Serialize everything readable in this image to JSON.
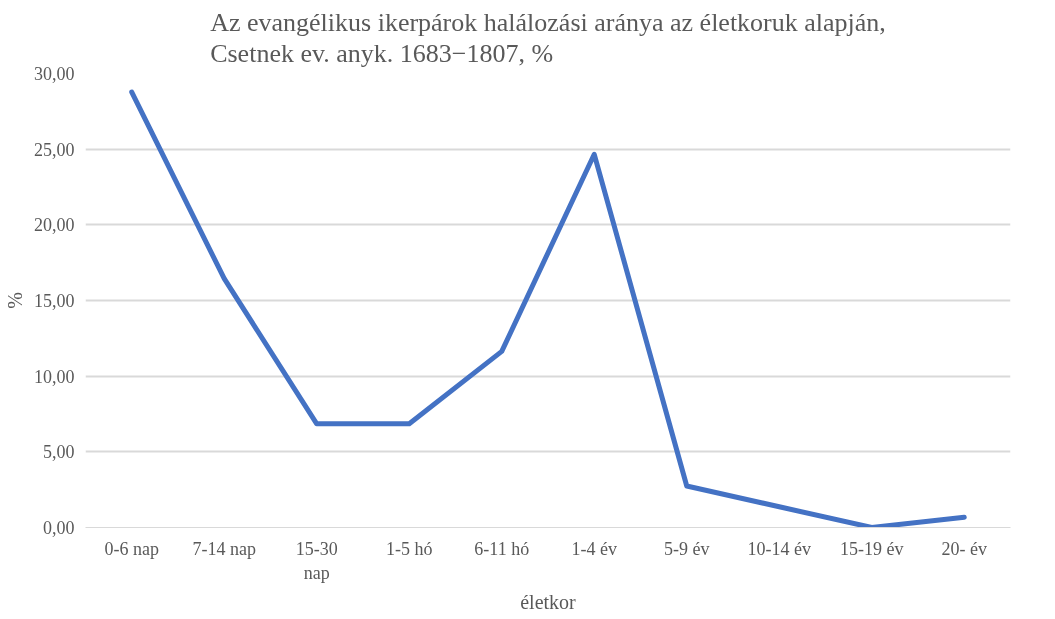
{
  "chart_data": {
    "type": "line",
    "title": "Az evangélikus ikerpárok halálozási aránya az életkoruk alapján,\nCsetnek ev. anyk. 1683−1807, %",
    "xlabel": "életkor",
    "ylabel": "%",
    "categories": [
      "0-6 nap",
      "7-14 nap",
      "15-30\nnap",
      "1-5 hó",
      "6-11 hó",
      "1-4 év",
      "5-9 év",
      "10-14 év",
      "15-19 év",
      "20- év"
    ],
    "series": [
      {
        "color": "#4472c4",
        "values": [
          28.77,
          16.44,
          6.85,
          6.85,
          11.64,
          24.66,
          2.74,
          1.37,
          0,
          0.68
        ]
      }
    ],
    "ylim": [
      0,
      30
    ],
    "yticks": [
      {
        "value": 0,
        "label": "0,00"
      },
      {
        "value": 5,
        "label": "5,00"
      },
      {
        "value": 10,
        "label": "10,00"
      },
      {
        "value": 15,
        "label": "15,00"
      },
      {
        "value": 20,
        "label": "20,00"
      },
      {
        "value": 25,
        "label": "25,00"
      },
      {
        "value": 30,
        "label": "30,00"
      }
    ],
    "grid": "y",
    "marker": "none",
    "line_style": "solid"
  }
}
